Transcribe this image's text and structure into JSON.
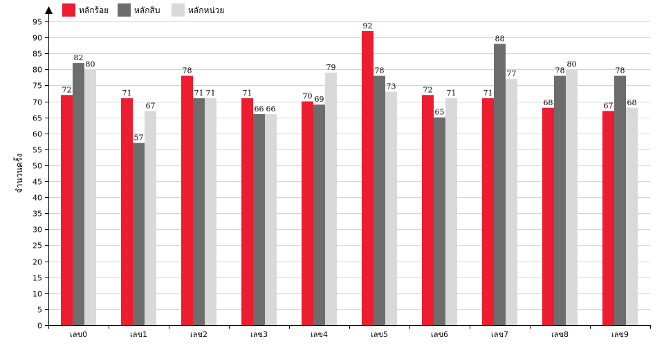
{
  "chart_data": {
    "type": "bar",
    "title": "",
    "xlabel": "",
    "ylabel": "จำนวนครั้ง",
    "ylim": [
      0,
      95
    ],
    "ytick_step": 5,
    "grid": true,
    "legend_position": "top-left",
    "categories": [
      "เลข0",
      "เลข1",
      "เลข2",
      "เลข3",
      "เลข4",
      "เลข5",
      "เลข6",
      "เลข7",
      "เลข8",
      "เลข9"
    ],
    "series": [
      {
        "name": "หลักร้อย",
        "color": "#ed1c2e",
        "values": [
          72,
          71,
          78,
          71,
          70,
          92,
          72,
          71,
          68,
          67
        ]
      },
      {
        "name": "หลักสิบ",
        "color": "#6d6d6d",
        "values": [
          82,
          57,
          71,
          66,
          69,
          78,
          65,
          88,
          78,
          78
        ]
      },
      {
        "name": "หลักหน่วย",
        "color": "#d9d9d9",
        "values": [
          80,
          67,
          71,
          66,
          79,
          73,
          71,
          77,
          80,
          68
        ]
      }
    ]
  }
}
